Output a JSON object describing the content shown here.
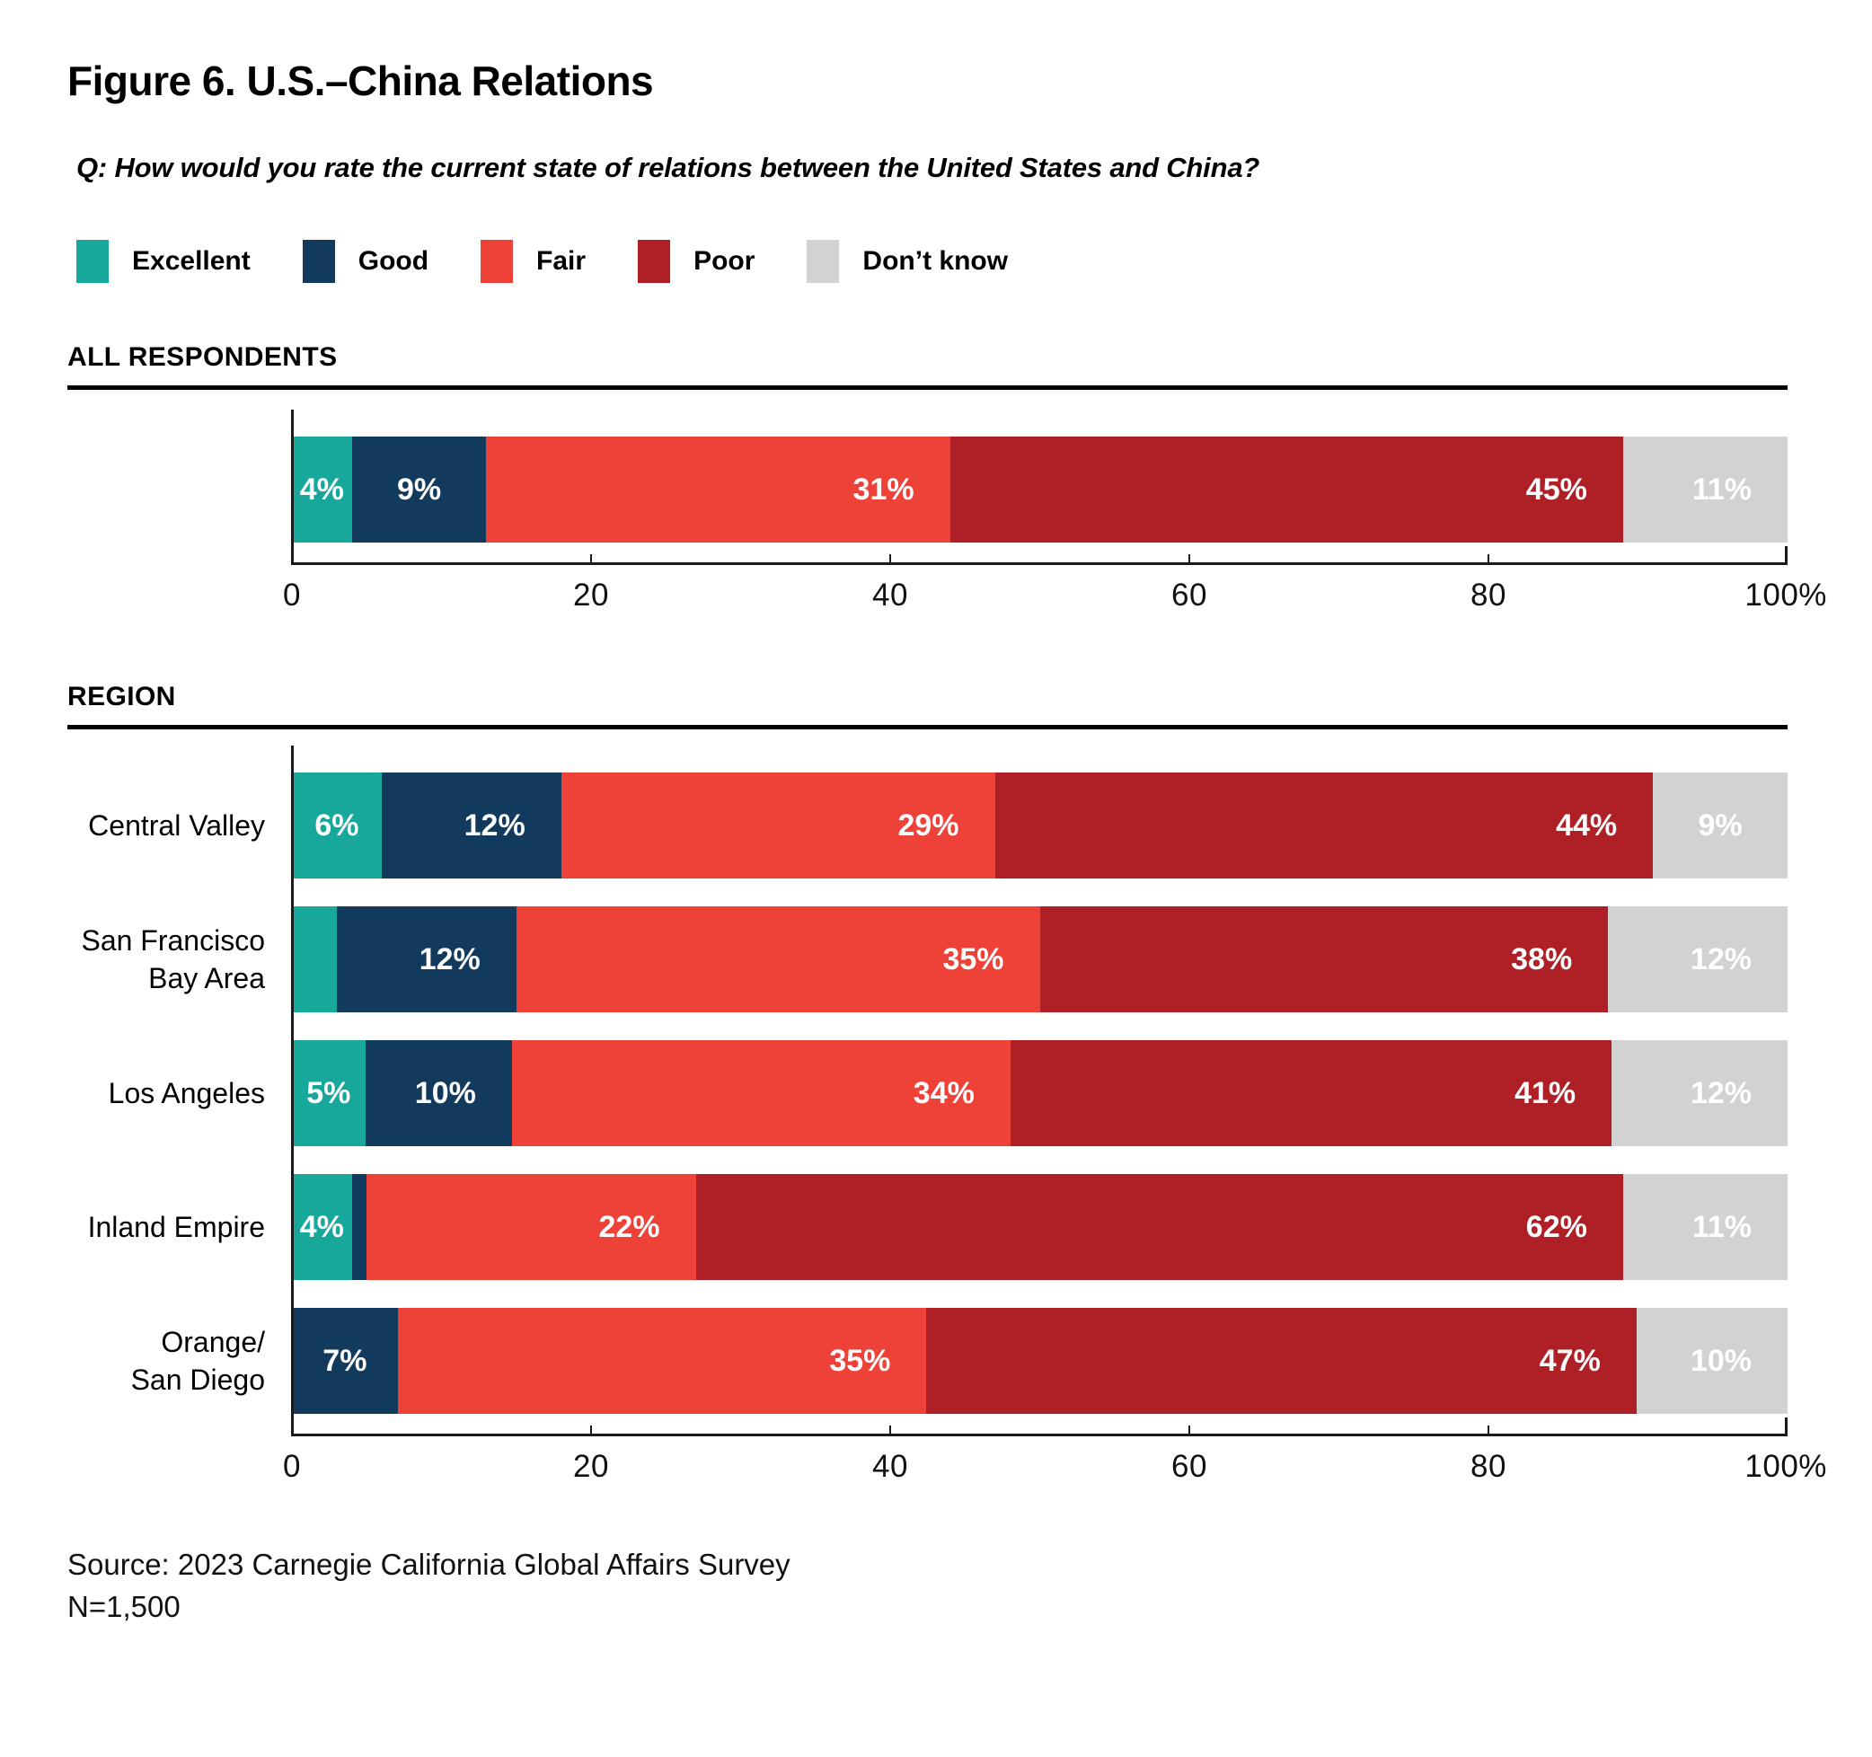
{
  "figure": {
    "title": "Figure 6. U.S.–China Relations",
    "question": "Q: How would you rate the current state of relations between the United States and China?",
    "source_line1": "Source: 2023 Carnegie California Global Affairs Survey",
    "source_line2": "N=1,500"
  },
  "legend": [
    {
      "key": "excellent",
      "label": "Excellent",
      "color": "#17A79B"
    },
    {
      "key": "good",
      "label": "Good",
      "color": "#113A5D"
    },
    {
      "key": "fair",
      "label": "Fair",
      "color": "#EE4137"
    },
    {
      "key": "poor",
      "label": "Poor",
      "color": "#AE2025"
    },
    {
      "key": "dont_know",
      "label": "Don’t know",
      "color": "#D2D2D2"
    }
  ],
  "chart_data": {
    "type": "bar",
    "stacked": true,
    "orientation": "horizontal",
    "unit": "%",
    "x_axis": {
      "range": [
        0,
        100
      ],
      "tick_labels": [
        "0",
        "20",
        "40",
        "60",
        "80"
      ],
      "end_label": "100%"
    },
    "series_names": [
      "Excellent",
      "Good",
      "Fair",
      "Poor",
      "Don't know"
    ],
    "sections": [
      {
        "heading": "ALL RESPONDENTS",
        "rows": [
          {
            "label_lines": [],
            "segments": [
              {
                "key": "excellent",
                "value": 4,
                "text": "4%"
              },
              {
                "key": "good",
                "value": 9,
                "text": "9%"
              },
              {
                "key": "fair",
                "value": 31,
                "text": "31%"
              },
              {
                "key": "poor",
                "value": 45,
                "text": "45%"
              },
              {
                "key": "dont_know",
                "value": 11,
                "text": "11%"
              }
            ]
          }
        ]
      },
      {
        "heading": "REGION",
        "rows": [
          {
            "label_lines": [
              "Central Valley"
            ],
            "segments": [
              {
                "key": "excellent",
                "value": 6,
                "text": "6%"
              },
              {
                "key": "good",
                "value": 12,
                "text": "12%"
              },
              {
                "key": "fair",
                "value": 29,
                "text": "29%"
              },
              {
                "key": "poor",
                "value": 44,
                "text": "44%"
              },
              {
                "key": "dont_know",
                "value": 9,
                "text": "9%"
              }
            ]
          },
          {
            "label_lines": [
              "San Francisco",
              "Bay Area"
            ],
            "segments": [
              {
                "key": "excellent",
                "value": 3,
                "text": ""
              },
              {
                "key": "good",
                "value": 12,
                "text": "12%"
              },
              {
                "key": "fair",
                "value": 35,
                "text": "35%"
              },
              {
                "key": "poor",
                "value": 38,
                "text": "38%"
              },
              {
                "key": "dont_know",
                "value": 12,
                "text": "12%"
              }
            ]
          },
          {
            "label_lines": [
              "Los Angeles"
            ],
            "segments": [
              {
                "key": "excellent",
                "value": 5,
                "text": "5%"
              },
              {
                "key": "good",
                "value": 10,
                "text": "10%"
              },
              {
                "key": "fair",
                "value": 34,
                "text": "34%"
              },
              {
                "key": "poor",
                "value": 41,
                "text": "41%"
              },
              {
                "key": "dont_know",
                "value": 12,
                "text": "12%"
              }
            ]
          },
          {
            "label_lines": [
              "Inland Empire"
            ],
            "segments": [
              {
                "key": "excellent",
                "value": 4,
                "text": "4%"
              },
              {
                "key": "good",
                "value": 1,
                "text": ""
              },
              {
                "key": "fair",
                "value": 22,
                "text": "22%"
              },
              {
                "key": "poor",
                "value": 62,
                "text": "62%"
              },
              {
                "key": "dont_know",
                "value": 11,
                "text": "11%"
              }
            ]
          },
          {
            "label_lines": [
              "Orange/",
              "San Diego"
            ],
            "segments": [
              {
                "key": "excellent",
                "value": 0,
                "text": ""
              },
              {
                "key": "good",
                "value": 7,
                "text": "7%"
              },
              {
                "key": "fair",
                "value": 35,
                "text": "35%"
              },
              {
                "key": "poor",
                "value": 47,
                "text": "47%"
              },
              {
                "key": "dont_know",
                "value": 10,
                "text": "10%"
              }
            ]
          }
        ]
      }
    ]
  }
}
